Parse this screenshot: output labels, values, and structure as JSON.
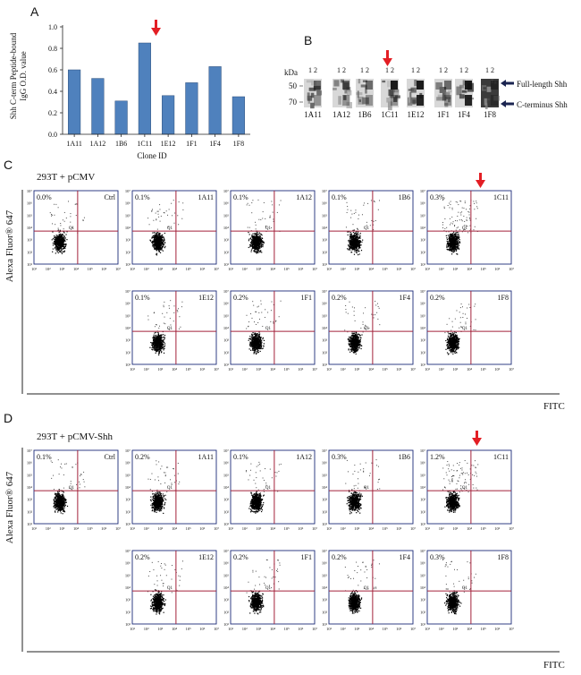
{
  "panel_labels": {
    "a": "A",
    "b": "B",
    "c": "C",
    "d": "D"
  },
  "chart_data": {
    "type": "bar",
    "title": "",
    "ylabel": "Shh C-term Peptide-bound IgG O.D. value",
    "ylabel_lines": [
      "Shh C-term Peptide-bound",
      "IgG O.D. value"
    ],
    "xlabel": "Clone ID",
    "categories": [
      "1A11",
      "1A12",
      "1B6",
      "1C11",
      "1E12",
      "1F1",
      "1F4",
      "1F8"
    ],
    "values": [
      0.6,
      0.52,
      0.31,
      0.85,
      0.36,
      0.48,
      0.63,
      0.35
    ],
    "ylim": [
      0,
      1.0
    ],
    "yticks": [
      "0.0",
      "0.2",
      "0.4",
      "0.6",
      "0.8",
      "1.0"
    ],
    "highlight": "1C11"
  },
  "blot": {
    "unit": "kDa",
    "markers": [
      "50",
      "70"
    ],
    "lane_nums": "1 2",
    "clones": [
      "1A11",
      "1A12",
      "1B6",
      "1C11",
      "1E12",
      "1F1",
      "1F4",
      "1F8"
    ],
    "legend_full": "Full-length Shh",
    "legend_cterm": "C-terminus Shh",
    "highlight": "1C11"
  },
  "panel_c": {
    "condition": "293T + pCMV",
    "ylabel": "Alexa Fluor® 647",
    "xlabel": "FITC",
    "highlight": "1C11",
    "plots": [
      {
        "id": "Ctrl",
        "pct": "0.0%"
      },
      {
        "id": "1A11",
        "pct": "0.1%"
      },
      {
        "id": "1A12",
        "pct": "0.1%"
      },
      {
        "id": "1B6",
        "pct": "0.1%"
      },
      {
        "id": "1C11",
        "pct": "0.3%"
      },
      {
        "id": "1E12",
        "pct": "0.1%"
      },
      {
        "id": "1F1",
        "pct": "0.2%"
      },
      {
        "id": "1F4",
        "pct": "0.2%"
      },
      {
        "id": "1F8",
        "pct": "0.2%"
      }
    ]
  },
  "panel_d": {
    "condition": "293T + pCMV-Shh",
    "ylabel": "Alexa Fluor® 647",
    "xlabel": "FITC",
    "highlight": "1C11",
    "plots": [
      {
        "id": "Ctrl",
        "pct": "0.1%"
      },
      {
        "id": "1A11",
        "pct": "0.2%"
      },
      {
        "id": "1A12",
        "pct": "0.1%"
      },
      {
        "id": "1B6",
        "pct": "0.3%"
      },
      {
        "id": "1C11",
        "pct": "1.2%"
      },
      {
        "id": "1E12",
        "pct": "0.2%"
      },
      {
        "id": "1F1",
        "pct": "0.2%"
      },
      {
        "id": "1F4",
        "pct": "0.2%"
      },
      {
        "id": "1F8",
        "pct": "0.3%"
      }
    ]
  },
  "flow": {
    "decades": [
      "10¹",
      "10²",
      "10³",
      "10⁴",
      "10⁵",
      "10⁶",
      "10⁷"
    ],
    "gate_label": "Q1"
  },
  "colors": {
    "bar": "#4f81bd",
    "arrow": "#e31e24",
    "gate": "#a3213a",
    "plot_border": "#1b2b78"
  }
}
